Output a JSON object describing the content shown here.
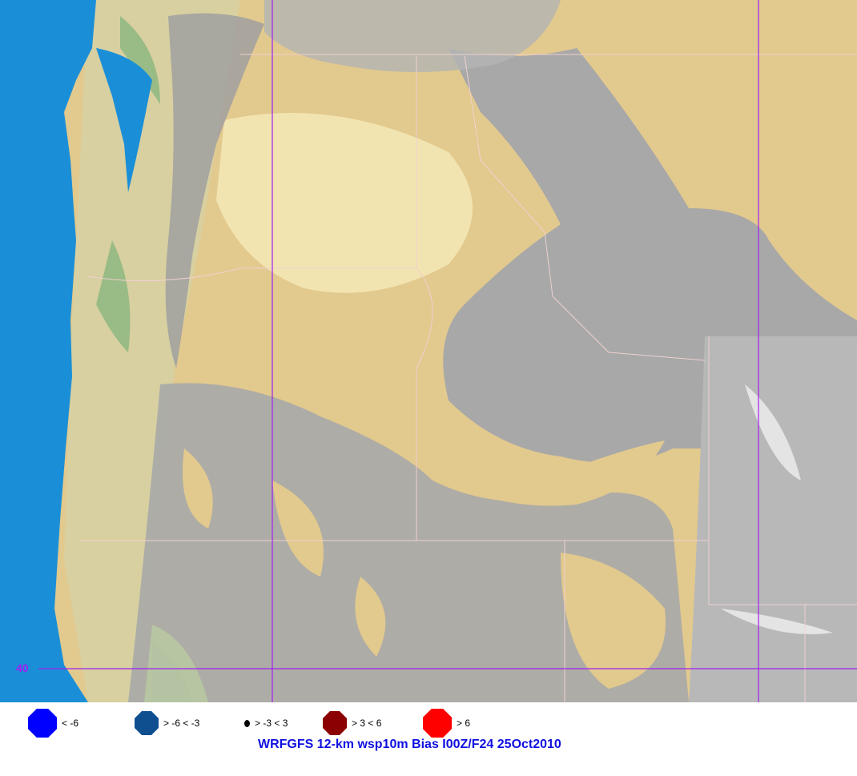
{
  "map": {
    "colors": {
      "ocean": "#1a8fd8",
      "lowland": "#e2c98e",
      "valley": "#f2e4b0",
      "mountain": "#a8a8a8",
      "highpeak": "#d8d8d8",
      "forest": "#7fb27a",
      "gridline": "#a020f0",
      "border": "#f0d0d0"
    },
    "latitude_label": "40"
  },
  "legend": {
    "items": [
      {
        "label": "< -6",
        "color": "#0000ff",
        "size": "large"
      },
      {
        "label": "> -6 < -3",
        "color": "#0f4f8f",
        "size": "medium"
      },
      {
        "label": "> -3 < 3",
        "color": "#000000",
        "size": "small"
      },
      {
        "label": "> 3 < 6",
        "color": "#8b0000",
        "size": "medium"
      },
      {
        "label": "> 6",
        "color": "#ff0000",
        "size": "large"
      }
    ],
    "title": "WRFGFS 12-km wsp10m Bias I00Z/F24 25Oct2010"
  }
}
